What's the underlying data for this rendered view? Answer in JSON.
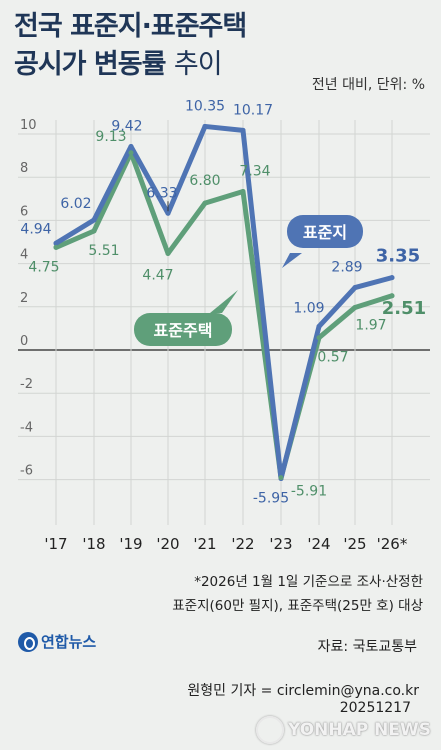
{
  "title": {
    "line1": "전국 표준지·표준주택",
    "line2_bold": "공시가 변동률",
    "line2_light": "추이"
  },
  "unit": "전년 대비, 단위: %",
  "colors": {
    "land": "#4f74b4",
    "house": "#5f9f7a",
    "grid": "#d2d5d2",
    "zero": "#222222"
  },
  "chart_data": {
    "type": "line",
    "categories": [
      "'17",
      "'18",
      "'19",
      "'20",
      "'21",
      "'22",
      "'23",
      "'24",
      "'25",
      "'26*"
    ],
    "y_ticks": [
      "10",
      "8",
      "6",
      "4",
      "2",
      "0",
      "-2",
      "-4",
      "-6"
    ],
    "ylim": [
      -7,
      11
    ],
    "grid": true,
    "series": [
      {
        "name": "표준지",
        "values": [
          4.94,
          6.02,
          9.42,
          6.33,
          10.35,
          10.17,
          -5.95,
          1.09,
          2.89,
          3.35
        ],
        "labels": [
          "4.94",
          "6.02",
          "9.42",
          "6.33",
          "10.35",
          "10.17",
          "-5.95",
          "1.09",
          "2.89",
          "3.35"
        ]
      },
      {
        "name": "표준주택",
        "values": [
          4.75,
          5.51,
          9.13,
          4.47,
          6.8,
          7.34,
          -5.91,
          0.57,
          1.97,
          2.51
        ],
        "labels": [
          "4.75",
          "5.51",
          "9.13",
          "4.47",
          "6.80",
          "7.34",
          "-5.91",
          "0.57",
          "1.97",
          "2.51"
        ]
      }
    ]
  },
  "notes": {
    "line1": "*2026년 1월 1일 기준으로 조사·산정한",
    "line2": "표준지(60만 필지), 표준주택(25만 호) 대상"
  },
  "source": "자료: 국토교통부",
  "reporter": "원형민 기자 = circlemin@yna.co.kr",
  "date": "20251217",
  "logo_left": "연합뉴스",
  "logo_right": "YONHAP NEWS"
}
